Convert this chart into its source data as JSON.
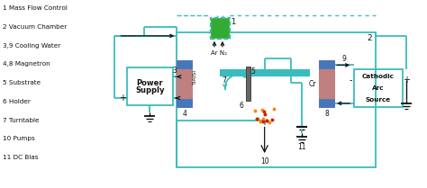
{
  "bg_color": "#ffffff",
  "teal": "#3bbcbc",
  "black": "#111111",
  "pink": "#c08080",
  "blue_conn": "#4477bb",
  "green_mfc": "#33aa33",
  "orange_dot": "#ff8800",
  "red_dot": "#cc2200",
  "legend_items": [
    "1 Mass Flow Control",
    "2 Vacuum Chamber",
    "3,9 Cooling Water",
    "4,8 Magnetron",
    "5 Substrate",
    "6 Holder",
    "7 Turntable",
    "10 Pumps",
    "11 DC Bias"
  ]
}
